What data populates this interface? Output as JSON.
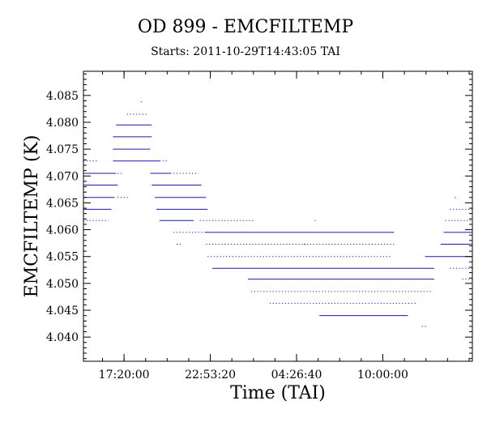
{
  "chart_data": {
    "type": "scatter",
    "title": "OD 899 - EMCFILTEMP",
    "subtitle": "Starts: 2011-10-29T14:43:05 TAI",
    "xlabel": "Time (TAI)",
    "ylabel": "EMCFILTEMP (K)",
    "x_unit": "hours since 2011-10-29T14:43:05 TAI",
    "xlim": [
      0,
      25.05
    ],
    "ylim": [
      4.0355,
      4.0895
    ],
    "x_ticks": [
      {
        "value": 2.615,
        "label": "17:20:00"
      },
      {
        "value": 8.171,
        "label": "22:53:20"
      },
      {
        "value": 13.726,
        "label": "04:26:40"
      },
      {
        "value": 19.282,
        "label": "10:00:00"
      }
    ],
    "y_ticks": [
      {
        "value": 4.04,
        "label": "4.040"
      },
      {
        "value": 4.045,
        "label": "4.045"
      },
      {
        "value": 4.05,
        "label": "4.050"
      },
      {
        "value": 4.055,
        "label": "4.055"
      },
      {
        "value": 4.06,
        "label": "4.060"
      },
      {
        "value": 4.065,
        "label": "4.065"
      },
      {
        "value": 4.07,
        "label": "4.070"
      },
      {
        "value": 4.075,
        "label": "4.075"
      },
      {
        "value": 4.08,
        "label": "4.080"
      },
      {
        "value": 4.085,
        "label": "4.085"
      }
    ],
    "series_color": "#1a1aa6",
    "segments": [
      {
        "y": 4.0728,
        "x0": 0.0,
        "x1": 1.0,
        "density": "sparse"
      },
      {
        "y": 4.0705,
        "x0": 0.0,
        "x1": 2.1,
        "density": "dense"
      },
      {
        "y": 4.0683,
        "x0": 0.0,
        "x1": 2.2,
        "density": "dense"
      },
      {
        "y": 4.066,
        "x0": 0.0,
        "x1": 2.0,
        "density": "dense"
      },
      {
        "y": 4.0638,
        "x0": 0.0,
        "x1": 1.8,
        "density": "dense"
      },
      {
        "y": 4.0617,
        "x0": 0.0,
        "x1": 1.6,
        "density": "sparse"
      },
      {
        "y": 4.066,
        "x0": 2.2,
        "x1": 2.9,
        "density": "sparse"
      },
      {
        "y": 4.0705,
        "x0": 2.2,
        "x1": 2.6,
        "density": "sparse"
      },
      {
        "y": 4.0728,
        "x0": 1.9,
        "x1": 4.9,
        "density": "dense"
      },
      {
        "y": 4.075,
        "x0": 1.9,
        "x1": 4.3,
        "density": "dense"
      },
      {
        "y": 4.0773,
        "x0": 1.9,
        "x1": 4.4,
        "density": "dense"
      },
      {
        "y": 4.0795,
        "x0": 2.1,
        "x1": 4.4,
        "density": "dense"
      },
      {
        "y": 4.0815,
        "x0": 2.8,
        "x1": 4.1,
        "density": "sparse"
      },
      {
        "y": 4.0838,
        "x0": 3.7,
        "x1": 3.9,
        "density": "sparse"
      },
      {
        "y": 4.0728,
        "x0": 4.9,
        "x1": 5.5,
        "density": "sparse"
      },
      {
        "y": 4.0705,
        "x0": 4.3,
        "x1": 5.6,
        "density": "dense"
      },
      {
        "y": 4.0683,
        "x0": 4.4,
        "x1": 7.6,
        "density": "dense"
      },
      {
        "y": 4.066,
        "x0": 4.6,
        "x1": 7.9,
        "density": "dense"
      },
      {
        "y": 4.0638,
        "x0": 4.7,
        "x1": 8.0,
        "density": "dense"
      },
      {
        "y": 4.0617,
        "x0": 4.9,
        "x1": 7.1,
        "density": "dense"
      },
      {
        "y": 4.0705,
        "x0": 5.6,
        "x1": 7.4,
        "density": "sparse"
      },
      {
        "y": 4.0595,
        "x0": 5.8,
        "x1": 7.7,
        "density": "sparse"
      },
      {
        "y": 4.0573,
        "x0": 6.0,
        "x1": 6.4,
        "density": "sparse"
      },
      {
        "y": 4.0617,
        "x0": 7.5,
        "x1": 11.0,
        "density": "sparse"
      },
      {
        "y": 4.0595,
        "x0": 7.8,
        "x1": 20.0,
        "density": "dense"
      },
      {
        "y": 4.0573,
        "x0": 7.9,
        "x1": 14.3,
        "density": "sparse"
      },
      {
        "y": 4.055,
        "x0": 8.0,
        "x1": 19.9,
        "density": "sparse"
      },
      {
        "y": 4.0528,
        "x0": 8.3,
        "x1": 22.6,
        "density": "dense"
      },
      {
        "y": 4.0508,
        "x0": 10.6,
        "x1": 22.6,
        "density": "dense"
      },
      {
        "y": 4.0485,
        "x0": 10.8,
        "x1": 22.5,
        "density": "sparse"
      },
      {
        "y": 4.0463,
        "x0": 12.0,
        "x1": 21.5,
        "density": "sparse"
      },
      {
        "y": 4.044,
        "x0": 15.2,
        "x1": 20.9,
        "density": "dense"
      },
      {
        "y": 4.042,
        "x0": 21.8,
        "x1": 22.1,
        "density": "sparse"
      },
      {
        "y": 4.0573,
        "x0": 14.2,
        "x1": 20.0,
        "density": "sparse"
      },
      {
        "y": 4.0617,
        "x0": 14.9,
        "x1": 15.1,
        "density": "sparse"
      },
      {
        "y": 4.055,
        "x0": 22.0,
        "x1": 25.05,
        "density": "dense"
      },
      {
        "y": 4.0573,
        "x0": 23.0,
        "x1": 25.05,
        "density": "dense"
      },
      {
        "y": 4.0595,
        "x0": 23.2,
        "x1": 25.05,
        "density": "dense"
      },
      {
        "y": 4.0617,
        "x0": 23.3,
        "x1": 25.05,
        "density": "sparse"
      },
      {
        "y": 4.0638,
        "x0": 23.6,
        "x1": 25.05,
        "density": "sparse"
      },
      {
        "y": 4.0528,
        "x0": 23.6,
        "x1": 25.05,
        "density": "sparse"
      },
      {
        "y": 4.0508,
        "x0": 24.4,
        "x1": 25.05,
        "density": "sparse"
      },
      {
        "y": 4.066,
        "x0": 23.9,
        "x1": 24.1,
        "density": "sparse"
      }
    ]
  }
}
